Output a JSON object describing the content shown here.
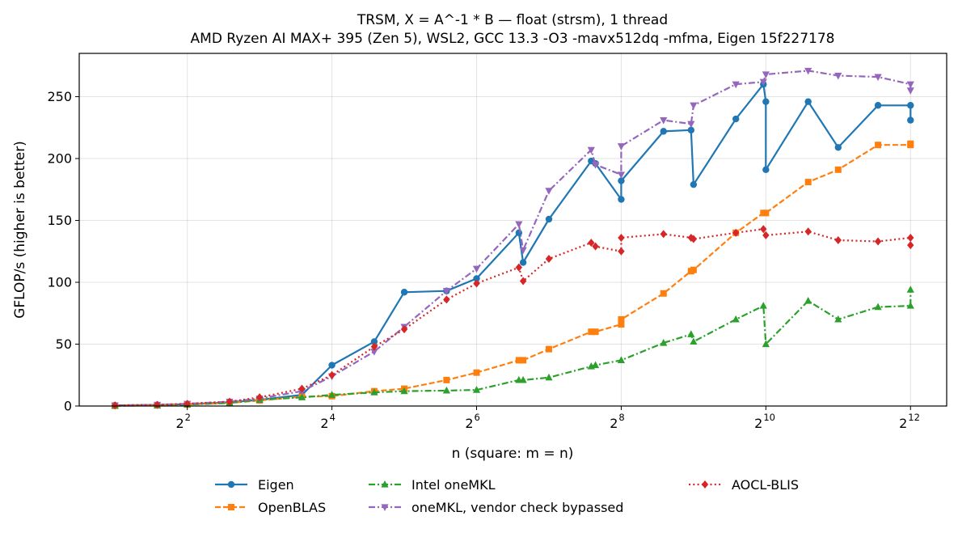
{
  "chart_data": {
    "type": "line",
    "title": "TRSM, X = A^-1 * B — float (strsm), 1 thread",
    "subtitle": "AMD Ryzen AI MAX+ 395 (Zen 5), WSL2, GCC 13.3 -O3 -mavx512dq -mfma, Eigen 15f227178",
    "xlabel": "n (square: m = n)",
    "ylabel": "GFLOP/s (higher is better)",
    "x_scale": "log2",
    "xlim": [
      1.42,
      5793
    ],
    "ylim": [
      0,
      285
    ],
    "x_ticks": [
      {
        "value": 4,
        "base": "2",
        "exp": "2"
      },
      {
        "value": 16,
        "base": "2",
        "exp": "4"
      },
      {
        "value": 64,
        "base": "2",
        "exp": "6"
      },
      {
        "value": 256,
        "base": "2",
        "exp": "8"
      },
      {
        "value": 1024,
        "base": "2",
        "exp": "10"
      },
      {
        "value": 4096,
        "base": "2",
        "exp": "12"
      }
    ],
    "y_ticks": [
      0,
      50,
      100,
      150,
      200,
      250
    ],
    "grid": true,
    "legend_position": "below",
    "series": [
      {
        "name": "Eigen",
        "color": "#1f77b4",
        "marker": "circle",
        "dash": "solid",
        "x": [
          2,
          3,
          4,
          6,
          8,
          12,
          16,
          24,
          32,
          48,
          64,
          96,
          100,
          128,
          192,
          200,
          256,
          256,
          384,
          500,
          512,
          768,
          1000,
          1024,
          1024,
          1536,
          2048,
          3000,
          4096,
          4096
        ],
        "y": [
          0.5,
          0.9,
          1.5,
          3,
          5,
          9,
          33,
          52,
          92,
          93,
          103,
          140,
          116,
          151,
          198,
          196,
          167,
          182,
          222,
          223,
          179,
          232,
          260,
          246,
          191,
          246,
          209,
          243,
          243,
          231
        ]
      },
      {
        "name": "OpenBLAS",
        "color": "#ff7f0e",
        "marker": "square",
        "dash": "dashed",
        "x": [
          2,
          3,
          4,
          6,
          8,
          12,
          16,
          24,
          32,
          48,
          64,
          96,
          100,
          128,
          192,
          200,
          256,
          256,
          384,
          500,
          512,
          768,
          1000,
          1024,
          1536,
          2048,
          3000,
          4096,
          4096
        ],
        "y": [
          0.2,
          0.5,
          1.2,
          2.5,
          4.5,
          7.5,
          8,
          12,
          14,
          21,
          27,
          37,
          37,
          46,
          60,
          60,
          66,
          70,
          91,
          109,
          110,
          140,
          156,
          156,
          181,
          191,
          211,
          211,
          212
        ]
      },
      {
        "name": "Intel oneMKL",
        "color": "#2ca02c",
        "marker": "triangle-up",
        "dash": "dashdot",
        "x": [
          2,
          3,
          4,
          6,
          8,
          12,
          16,
          24,
          32,
          48,
          64,
          96,
          100,
          128,
          192,
          200,
          256,
          384,
          500,
          512,
          768,
          1000,
          1024,
          1536,
          2048,
          3000,
          4096,
          4096
        ],
        "y": [
          0.2,
          0.5,
          1.2,
          2.5,
          5,
          7,
          9,
          11,
          12,
          12.5,
          13,
          21,
          21,
          23,
          32,
          33,
          37,
          51,
          58,
          52,
          70,
          81,
          50,
          85,
          70,
          80,
          81,
          94
        ]
      },
      {
        "name": "oneMKL, vendor check bypassed",
        "color": "#9467bd",
        "marker": "triangle-down",
        "dash": "dashdot",
        "x": [
          2,
          3,
          4,
          6,
          8,
          12,
          16,
          24,
          32,
          48,
          64,
          96,
          100,
          128,
          192,
          200,
          256,
          256,
          384,
          500,
          512,
          768,
          1000,
          1024,
          1536,
          2048,
          3000,
          4096,
          4096
        ],
        "y": [
          0.5,
          1,
          1.8,
          3.5,
          6,
          12,
          24,
          44,
          64,
          93,
          111,
          147,
          126,
          174,
          207,
          195,
          187,
          210,
          231,
          228,
          243,
          260,
          262,
          268,
          271,
          267,
          266,
          260,
          255
        ]
      },
      {
        "name": "AOCL-BLIS",
        "color": "#d62728",
        "marker": "diamond",
        "dash": "dotted",
        "x": [
          2,
          3,
          4,
          6,
          8,
          12,
          16,
          24,
          32,
          48,
          64,
          96,
          100,
          128,
          192,
          200,
          256,
          256,
          384,
          500,
          512,
          768,
          1000,
          1024,
          1536,
          2048,
          3000,
          4096,
          4096
        ],
        "y": [
          0.5,
          1,
          1.8,
          3.5,
          7,
          14,
          25,
          48,
          62,
          86,
          99,
          112,
          101,
          119,
          132,
          129,
          125,
          136,
          139,
          136,
          135,
          140,
          143,
          138,
          141,
          134,
          133,
          136,
          130
        ]
      }
    ],
    "legend_order": [
      "Eigen",
      "OpenBLAS",
      "Intel oneMKL",
      "oneMKL, vendor check bypassed",
      "AOCL-BLIS"
    ]
  }
}
